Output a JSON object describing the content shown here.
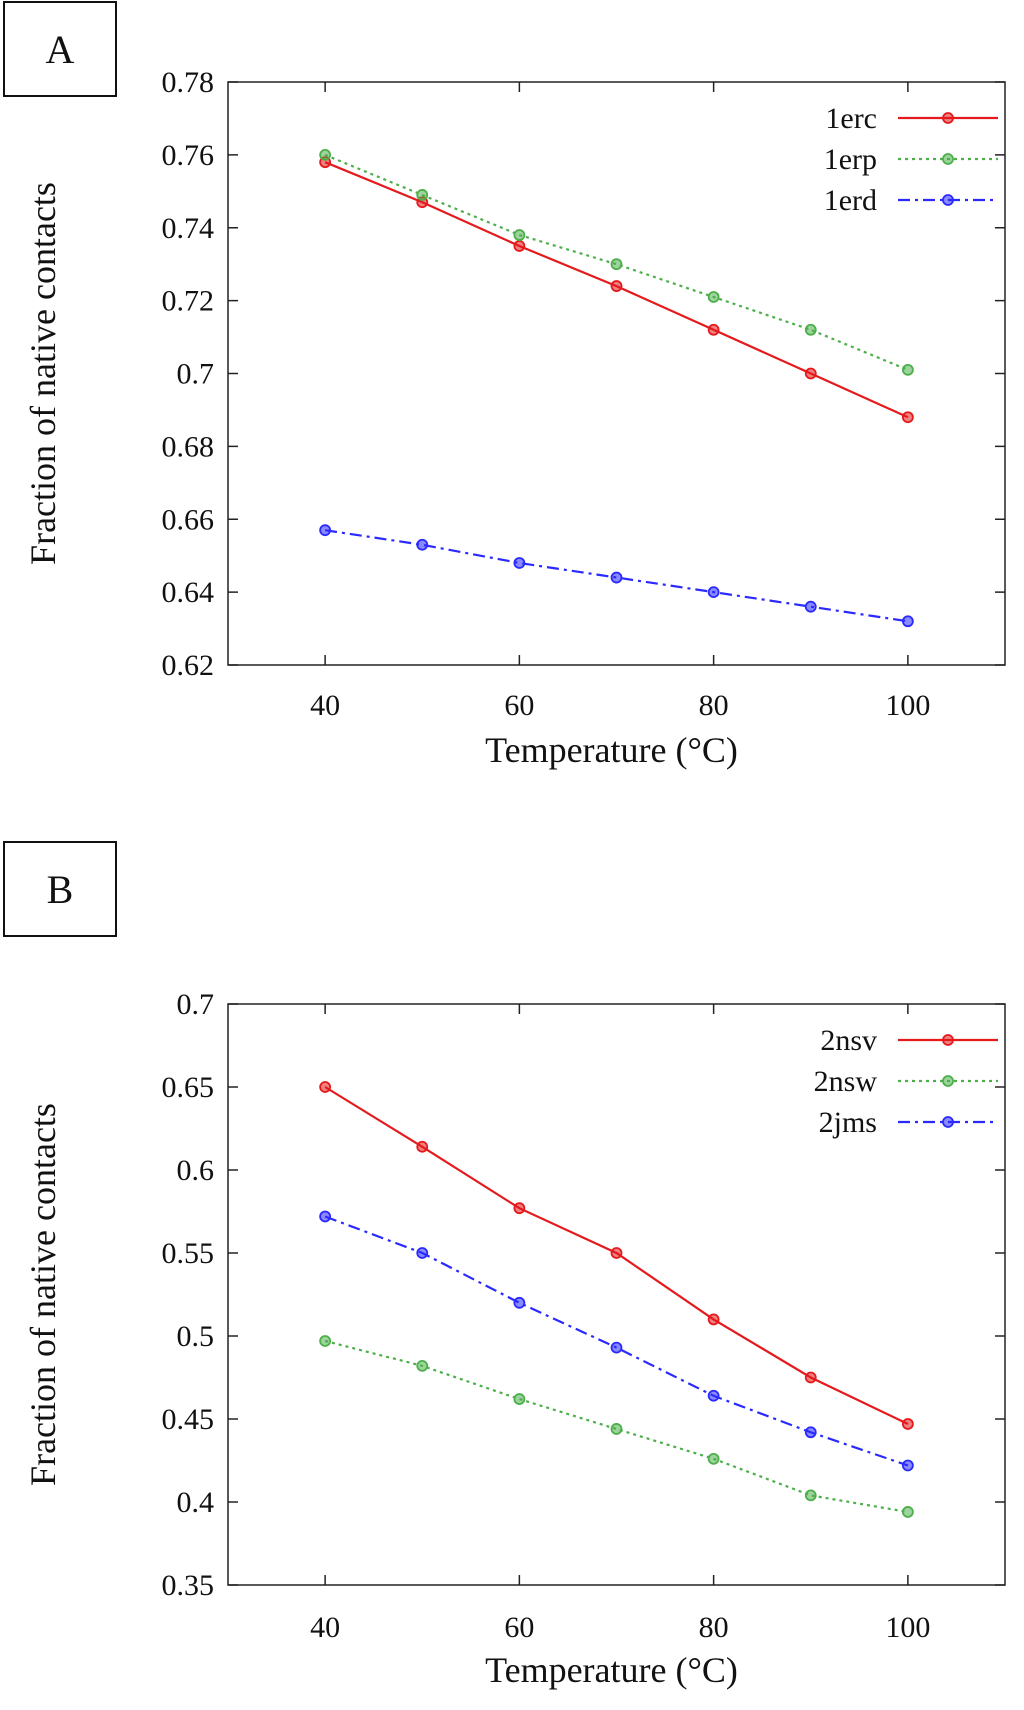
{
  "chart_data": [
    {
      "panel": "A",
      "type": "line",
      "title": "",
      "xlabel": "Temperature (°C)",
      "ylabel": "Fraction of native contacts",
      "x": [
        40,
        50,
        60,
        70,
        80,
        90,
        100
      ],
      "xlim": [
        30,
        110
      ],
      "ylim": [
        0.62,
        0.78
      ],
      "xticks": [
        40,
        60,
        80,
        100
      ],
      "xtick_labels": [
        "40",
        "60",
        "80",
        "100"
      ],
      "yticks": [
        0.62,
        0.64,
        0.66,
        0.68,
        0.7,
        0.72,
        0.74,
        0.76,
        0.78
      ],
      "ytick_labels": [
        "0.62",
        "0.64",
        "0.66",
        "0.68",
        "0.7",
        "0.72",
        "0.74",
        "0.76",
        "0.78"
      ],
      "legend_position": "top-right",
      "series": [
        {
          "name": "1erc",
          "color": "#e41a1c",
          "style": "solid",
          "values": [
            0.758,
            0.747,
            0.735,
            0.724,
            0.712,
            0.7,
            0.688
          ]
        },
        {
          "name": "1erp",
          "color": "#4daf4a",
          "style": "dotted",
          "values": [
            0.76,
            0.749,
            0.738,
            0.73,
            0.721,
            0.712,
            0.701
          ]
        },
        {
          "name": "1erd",
          "color": "#2a2aff",
          "style": "dashdot",
          "values": [
            0.657,
            0.653,
            0.648,
            0.644,
            0.64,
            0.636,
            0.632
          ]
        }
      ]
    },
    {
      "panel": "B",
      "type": "line",
      "title": "",
      "xlabel": "Temperature (°C)",
      "ylabel": "Fraction of native contacts",
      "x": [
        40,
        50,
        60,
        70,
        80,
        90,
        100
      ],
      "xlim": [
        30,
        110
      ],
      "ylim": [
        0.35,
        0.7
      ],
      "xticks": [
        40,
        60,
        80,
        100
      ],
      "xtick_labels": [
        "40",
        "60",
        "80",
        "100"
      ],
      "yticks": [
        0.35,
        0.4,
        0.45,
        0.5,
        0.55,
        0.6,
        0.65,
        0.7
      ],
      "ytick_labels": [
        "0.35",
        "0.4",
        "0.45",
        "0.5",
        "0.55",
        "0.6",
        "0.65",
        "0.7"
      ],
      "legend_position": "top-right",
      "series": [
        {
          "name": "2nsv",
          "color": "#e41a1c",
          "style": "solid",
          "values": [
            0.65,
            0.614,
            0.577,
            0.55,
            0.51,
            0.475,
            0.447
          ]
        },
        {
          "name": "2nsw",
          "color": "#4daf4a",
          "style": "dotted",
          "values": [
            0.497,
            0.482,
            0.462,
            0.444,
            0.426,
            0.404,
            0.394
          ]
        },
        {
          "name": "2jms",
          "color": "#2a2aff",
          "style": "dashdot",
          "values": [
            0.572,
            0.55,
            0.52,
            0.493,
            0.464,
            0.442,
            0.422
          ]
        }
      ]
    }
  ]
}
